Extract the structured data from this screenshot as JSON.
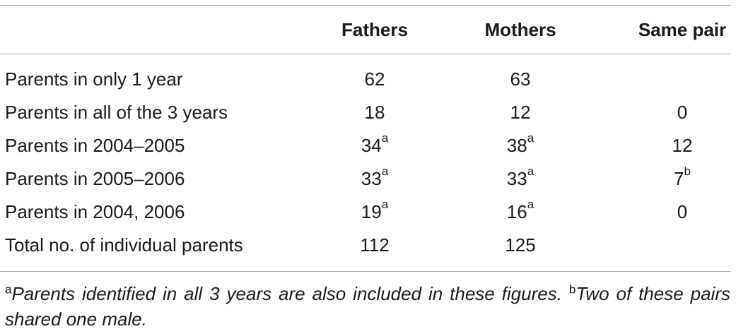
{
  "table": {
    "headers": {
      "col1": "Fathers",
      "col2": "Mothers",
      "col3": "Same pair"
    },
    "rows": [
      {
        "label": "Parents in only 1 year",
        "fathers": "62",
        "fathers_sup": "",
        "mothers": "63",
        "mothers_sup": "",
        "same": "",
        "same_sup": ""
      },
      {
        "label": "Parents in all of the 3 years",
        "fathers": "18",
        "fathers_sup": "",
        "mothers": "12",
        "mothers_sup": "",
        "same": "0",
        "same_sup": ""
      },
      {
        "label": "Parents in 2004–2005",
        "fathers": "34",
        "fathers_sup": "a",
        "mothers": "38",
        "mothers_sup": "a",
        "same": "12",
        "same_sup": ""
      },
      {
        "label": "Parents in 2005–2006",
        "fathers": "33",
        "fathers_sup": "a",
        "mothers": "33",
        "mothers_sup": "a",
        "same": "7",
        "same_sup": "b"
      },
      {
        "label": "Parents in 2004, 2006",
        "fathers": "19",
        "fathers_sup": "a",
        "mothers": "16",
        "mothers_sup": "a",
        "same": "0",
        "same_sup": ""
      },
      {
        "label": "Total no. of individual parents",
        "fathers": "112",
        "fathers_sup": "",
        "mothers": "125",
        "mothers_sup": "",
        "same": "",
        "same_sup": ""
      }
    ]
  },
  "footnotes": {
    "a_mark": "a",
    "a_text": "Parents identified in all 3 years are also included in these figures.",
    "b_mark": "b",
    "b_text": "Two of these pairs shared one male."
  }
}
